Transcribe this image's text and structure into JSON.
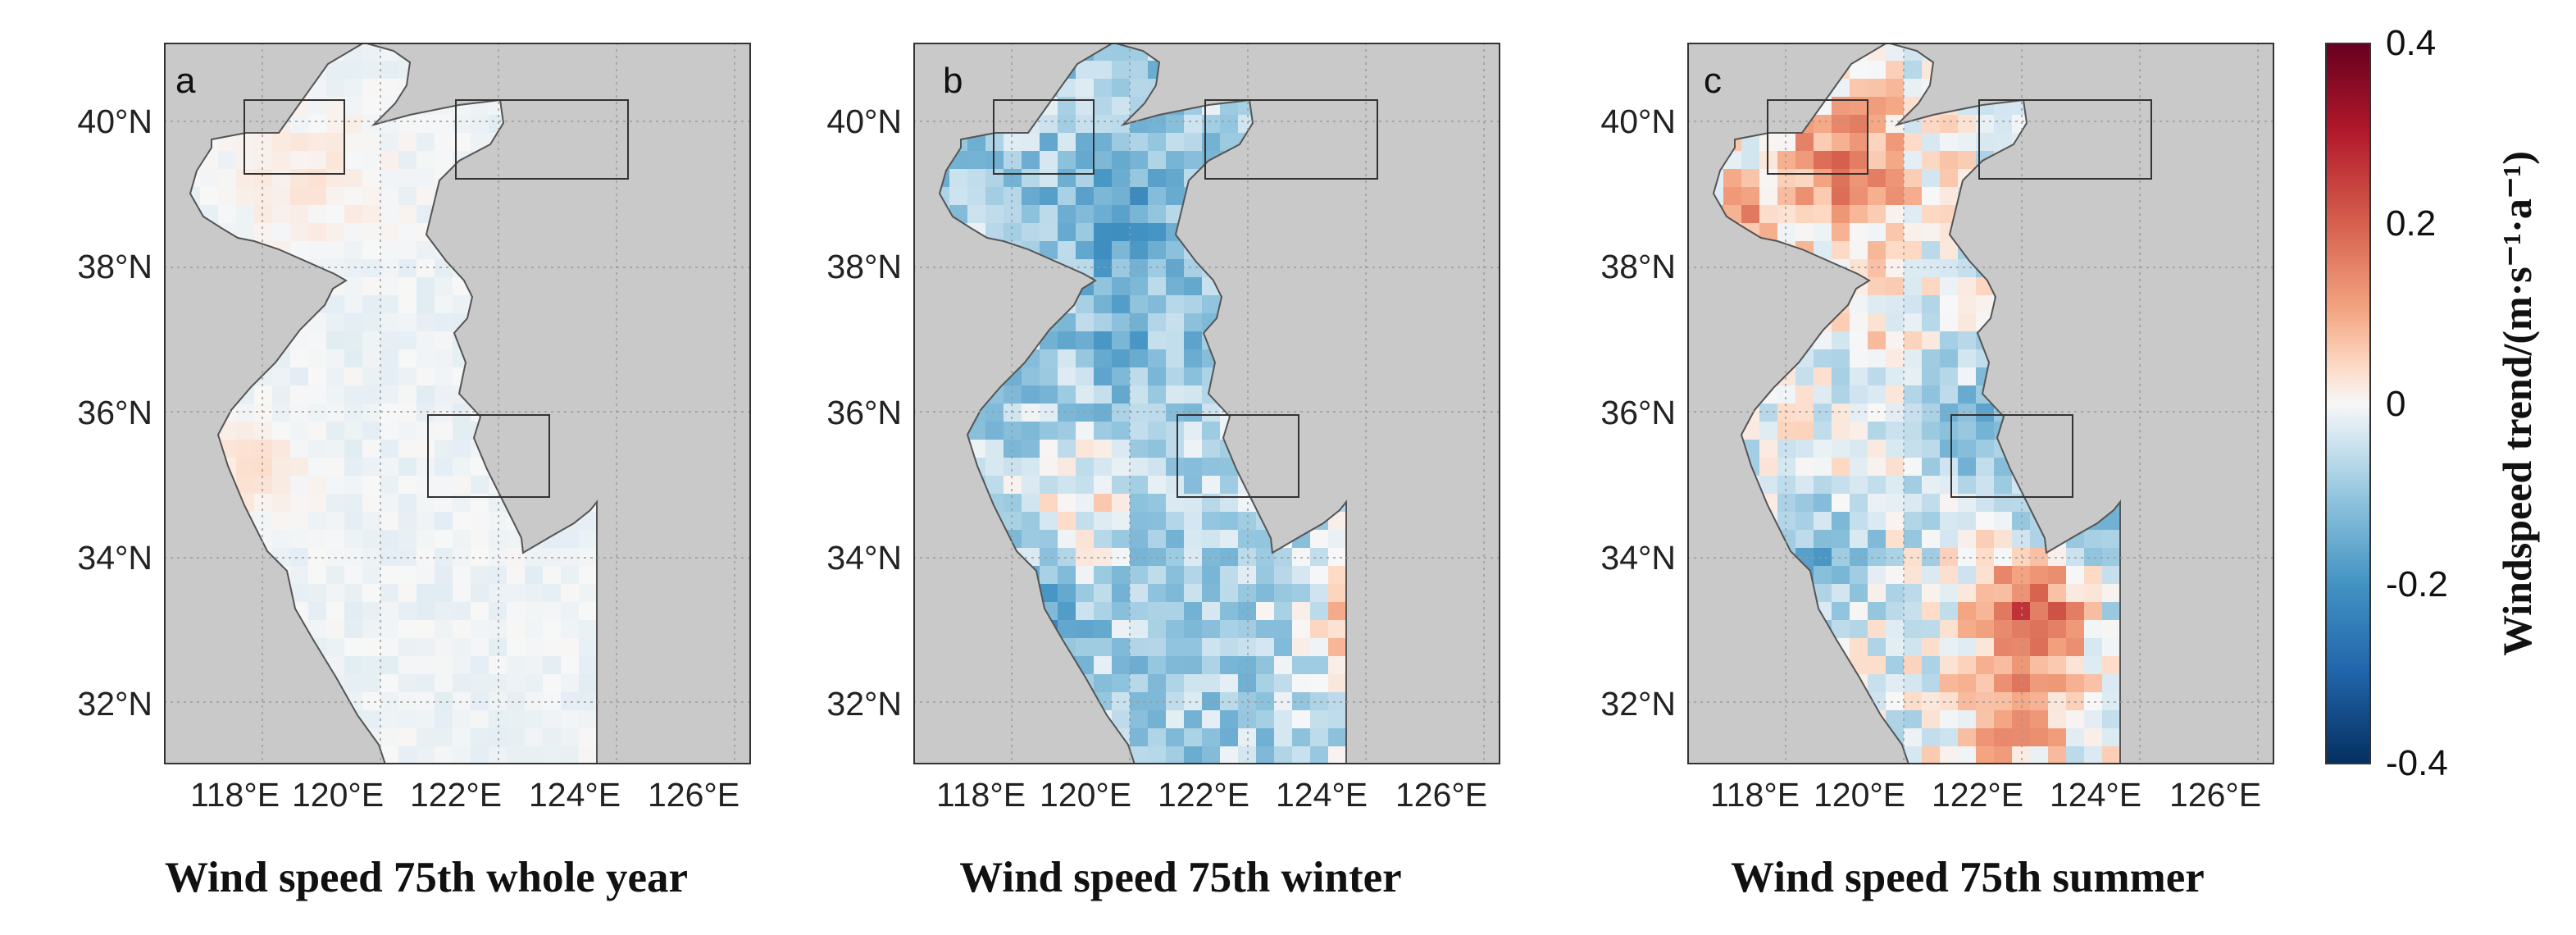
{
  "panels": [
    {
      "letter": "a",
      "caption": "Wind speed 75th whole year",
      "mode": "year"
    },
    {
      "letter": "b",
      "caption": "Wind speed 75th winter",
      "mode": "winter"
    },
    {
      "letter": "c",
      "caption": "Wind speed 75th summer",
      "mode": "summer"
    }
  ],
  "lat_labels": [
    "40°N",
    "38°N",
    "36°N",
    "34°N",
    "32°N"
  ],
  "lon_labels": [
    "118°E",
    "120°E",
    "122°E",
    "124°E",
    "126°E"
  ],
  "colorbar": {
    "title": "Windspeed trend/(m·s⁻¹·a⁻¹)",
    "ticks": [
      "0.4",
      "0.2",
      "0",
      "-0.2",
      "-0.4"
    ],
    "min": -0.4,
    "max": 0.4
  },
  "colors": {
    "land": "#c9c9c9",
    "grid": "#9a9a9a",
    "coast": "#555555"
  }
}
